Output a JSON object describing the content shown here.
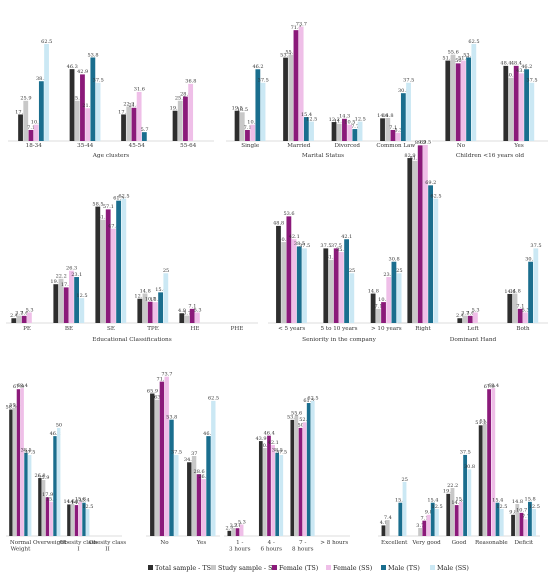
{
  "colors": {
    "total_ts": "#2e2e2e",
    "study_ss": "#c8c8c8",
    "female_ts": "#8b1a7a",
    "female_ss": "#efbfe8",
    "male_ts": "#1a6e8e",
    "male_ss": "#cbe8f4"
  },
  "chart_data": [
    {
      "type": "bar",
      "groups": [
        {
          "title": "Age clusters",
          "categories": [
            "18-34",
            "35-44",
            "45-54",
            "55-64"
          ],
          "values": [
            [
              17.1,
              25.9,
              7.1,
              10.5,
              38.5,
              62.5
            ],
            [
              46.3,
              25.9,
              42.9,
              21.1,
              53.8,
              37.5
            ],
            [
              17.1,
              22.2,
              21.4,
              31.6,
              5.7,
              null
            ],
            [
              19.5,
              25.9,
              28.6,
              36.8,
              null,
              null
            ]
          ]
        },
        {
          "title": "Marital Status",
          "categories": [
            "Single",
            "Married",
            "Divorced",
            "Common Law"
          ],
          "values": [
            [
              19.5,
              18.5,
              7.1,
              10.5,
              46.2,
              37.5
            ],
            [
              53.7,
              55.6,
              71.4,
              73.7,
              15.4,
              12.5
            ],
            [
              12.2,
              11.1,
              14.3,
              10.5,
              7.7,
              12.5
            ],
            [
              14.6,
              14.8,
              7.1,
              5.3,
              30.8,
              37.5
            ]
          ]
        },
        {
          "title": "Children <16 years old",
          "categories": [
            "No",
            "Yes"
          ],
          "values": [
            [
              51.8,
              55.6,
              50,
              51.8,
              53.8,
              62.5
            ],
            [
              48.4,
              40.7,
              48.4,
              43.6,
              46.2,
              37.5
            ]
          ]
        }
      ]
    },
    {
      "type": "bar",
      "groups": [
        {
          "title": "Educational Classifications",
          "categories": [
            "PE",
            "BE",
            "SE",
            "TPE",
            "HE",
            "PHE"
          ],
          "values": [
            [
              2.4,
              3.7,
              3.6,
              5.3,
              null,
              null
            ],
            [
              19.5,
              22.2,
              17.9,
              26.3,
              23.1,
              12.5
            ],
            [
              58.5,
              51.9,
              57.1,
              47.4,
              61.5,
              62.5
            ],
            [
              12.2,
              14.8,
              10.7,
              10.5,
              15.4,
              25
            ],
            [
              4.9,
              3.7,
              7.1,
              5.3,
              null,
              null
            ],
            [
              null,
              null,
              null,
              null,
              null,
              null
            ]
          ]
        },
        {
          "title": "Seniority in the company",
          "categories": [
            "< 5 years",
            "5 to 10 years",
            "> 10 years"
          ],
          "values": [
            [
              48.8,
              40.7,
              53.6,
              42.1,
              38.5,
              37.5
            ],
            [
              37.5,
              31.7,
              37.5,
              35.7,
              42.1,
              25
            ],
            [
              14.8,
              7.1,
              10.5,
              23.1,
              30.8,
              25
            ]
          ]
        },
        {
          "title": "Dominant Hand",
          "categories": [
            "Right",
            "Left",
            "Both"
          ],
          "values": [
            [
              82.9,
              81.5,
              89.3,
              89.5,
              69.2,
              62.5
            ],
            [
              2.4,
              3.7,
              3.6,
              5.3,
              null,
              null
            ],
            [
              14.6,
              14.8,
              7.1,
              5.3,
              30.8,
              37.5
            ]
          ]
        }
      ]
    },
    {
      "type": "bar",
      "groups": [
        {
          "title": "",
          "categories": [
            "Normal Weight",
            "Overweight",
            "Obesity class I",
            "Obesity class II"
          ],
          "values": [
            [
              58.5,
              59.3,
              67.9,
              68.4,
              38.5,
              37.5
            ],
            [
              26.8,
              25.9,
              17.9,
              15.8,
              46.2,
              50
            ],
            [
              14.6,
              14.8,
              14.3,
              15.8,
              15.4,
              12.5
            ],
            [
              null,
              null,
              null,
              null,
              null,
              null
            ]
          ]
        },
        {
          "title": "",
          "categories": [
            "No",
            "Yes"
          ],
          "values": [
            [
              65.9,
              63,
              71.4,
              73.7,
              53.8,
              37.5
            ],
            [
              34.1,
              37,
              28.6,
              26.3,
              46.2,
              62.5
            ]
          ]
        },
        {
          "title": "",
          "categories": [
            "1 - 3 hours",
            "4 - 6 hours",
            "7 - 8 hours",
            "> 8 hours"
          ],
          "values": [
            [
              2.4,
              3.7,
              3.6,
              5.3,
              null,
              null
            ],
            [
              43.9,
              40.7,
              46.4,
              42.1,
              38.5,
              37.5
            ],
            [
              53.7,
              55.6,
              50,
              52.6,
              61.5,
              62.5
            ],
            [
              null,
              null,
              null,
              null,
              null,
              null
            ]
          ]
        },
        {
          "title": "",
          "categories": [
            "Excellent",
            "Very good",
            "Good",
            "Reasonable",
            "Deficit"
          ],
          "values": [
            [
              4.9,
              7.4,
              null,
              null,
              15.4,
              25
            ],
            [
              null,
              3.7,
              7.1,
              9.8,
              15.4,
              12.5
            ],
            [
              19.5,
              22.2,
              14.3,
              15.8,
              37.5,
              30.8
            ],
            [
              51.2,
              51.9,
              67.9,
              68.4,
              15.4,
              12.5
            ],
            [
              9.8,
              14.8,
              10.7,
              7.7,
              15.8,
              12.5
            ]
          ]
        }
      ]
    }
  ],
  "legend": [
    {
      "label": "Total sample - TS",
      "color": "#2e2e2e"
    },
    {
      "label": "Study sample - SS",
      "color": "#c8c8c8"
    },
    {
      "label": "Female (TS)",
      "color": "#8b1a7a"
    },
    {
      "label": "Female (SS)",
      "color": "#efbfe8"
    },
    {
      "label": "Male (TS)",
      "color": "#1a6e8e"
    },
    {
      "label": "Male (SS)",
      "color": "#cbe8f4"
    }
  ]
}
